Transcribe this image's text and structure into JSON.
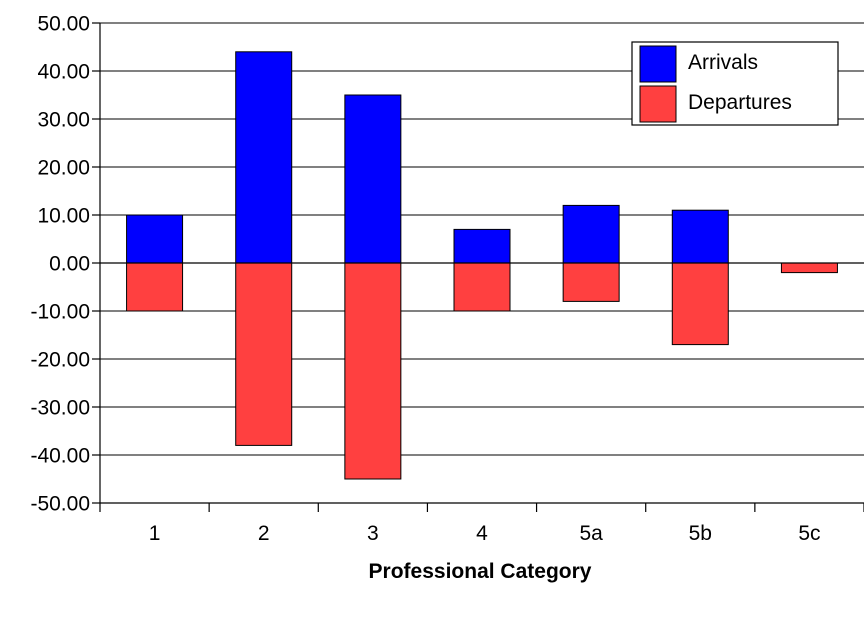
{
  "chart_data": {
    "type": "bar",
    "stacked": true,
    "title": "",
    "xlabel": "Professional Category",
    "ylabel": "",
    "categories": [
      "1",
      "2",
      "3",
      "4",
      "5a",
      "5b",
      "5c"
    ],
    "series": [
      {
        "name": "Arrivals",
        "color": "#0000FF",
        "values": [
          10,
          44,
          35,
          7,
          12,
          11,
          0
        ]
      },
      {
        "name": "Departures",
        "color": "#FF4040",
        "values": [
          -10,
          -38,
          -45,
          -10,
          -8,
          -17,
          -2
        ]
      }
    ],
    "ylim": [
      -50,
      50
    ],
    "yticks": [
      50,
      40,
      30,
      20,
      10,
      0,
      -10,
      -20,
      -30,
      -40,
      -50
    ],
    "ytick_labels": [
      "50.00",
      "40.00",
      "30.00",
      "20.00",
      "10.00",
      "0.00",
      "-10.00",
      "-20.00",
      "-30.00",
      "-40.00",
      "-50.00"
    ],
    "grid": true,
    "legend_position": "top-right"
  }
}
